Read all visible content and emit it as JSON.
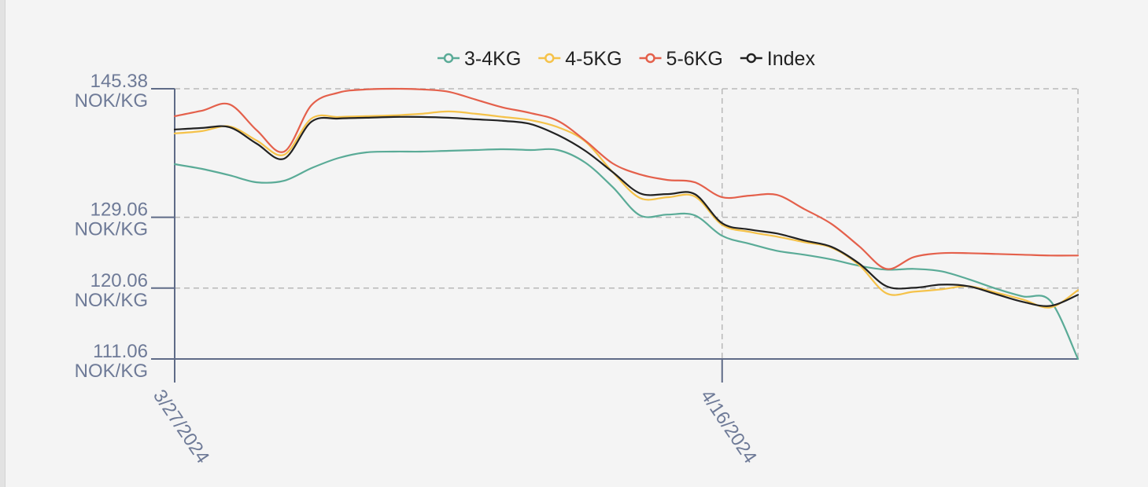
{
  "chart_data": {
    "type": "line",
    "title": "",
    "xlabel": "",
    "ylabel": "",
    "legend_position": "top",
    "grid": true,
    "y_unit": "NOK/KG",
    "ylim": [
      111.06,
      145.38
    ],
    "y_ticks": [
      {
        "value": 145.38,
        "label": "145.38",
        "unit": "NOK/KG"
      },
      {
        "value": 129.06,
        "label": "129.06",
        "unit": "NOK/KG"
      },
      {
        "value": 120.06,
        "label": "120.06",
        "unit": "NOK/KG"
      },
      {
        "value": 111.06,
        "label": "111.06",
        "unit": "NOK/KG"
      }
    ],
    "x_ticks": [
      "3/27/2024",
      "4/16/2024"
    ],
    "x": [
      "3/27/2024",
      "3/28/2024",
      "3/29/2024",
      "3/30/2024",
      "3/31/2024",
      "4/1/2024",
      "4/2/2024",
      "4/3/2024",
      "4/4/2024",
      "4/5/2024",
      "4/6/2024",
      "4/7/2024",
      "4/8/2024",
      "4/9/2024",
      "4/10/2024",
      "4/11/2024",
      "4/12/2024",
      "4/13/2024",
      "4/14/2024",
      "4/15/2024",
      "4/16/2024",
      "4/17/2024",
      "4/18/2024",
      "4/19/2024",
      "4/20/2024",
      "4/21/2024",
      "4/22/2024",
      "4/23/2024",
      "4/24/2024",
      "4/25/2024",
      "4/26/2024",
      "4/27/2024",
      "4/28/2024",
      "4/29/2024"
    ],
    "series": [
      {
        "name": "3-4KG",
        "color": "#5aab97",
        "values": [
          135.8,
          135.2,
          134.4,
          133.5,
          133.7,
          135.3,
          136.6,
          137.3,
          137.4,
          137.4,
          137.5,
          137.6,
          137.7,
          137.6,
          137.6,
          136.0,
          132.9,
          129.3,
          129.4,
          129.3,
          126.7,
          125.7,
          124.8,
          124.3,
          123.7,
          122.9,
          122.4,
          122.5,
          122.2,
          121.2,
          120.0,
          119.0,
          118.4,
          111.06
        ]
      },
      {
        "name": "4-5KG",
        "color": "#f5c249",
        "values": [
          139.7,
          140.0,
          140.6,
          138.8,
          137.0,
          141.6,
          141.8,
          141.9,
          142.0,
          142.2,
          142.5,
          142.2,
          141.8,
          141.4,
          140.5,
          138.7,
          134.8,
          131.5,
          131.6,
          131.7,
          128.1,
          127.2,
          126.6,
          125.9,
          125.2,
          123.0,
          119.4,
          119.6,
          119.9,
          120.3,
          119.5,
          118.6,
          117.6,
          119.8
        ]
      },
      {
        "name": "5-6KG",
        "color": "#e4604b",
        "values": [
          141.9,
          142.6,
          143.4,
          140.1,
          137.4,
          143.3,
          144.9,
          145.3,
          145.38,
          145.3,
          145.0,
          144.0,
          143.0,
          142.3,
          141.3,
          138.8,
          135.9,
          134.5,
          133.8,
          133.5,
          131.6,
          131.8,
          131.9,
          130.1,
          128.2,
          125.4,
          122.5,
          124.0,
          124.5,
          124.5,
          124.4,
          124.3,
          124.2,
          124.2
        ]
      },
      {
        "name": "Index",
        "color": "#222222",
        "values": [
          140.2,
          140.4,
          140.5,
          138.4,
          136.5,
          141.2,
          141.6,
          141.7,
          141.8,
          141.8,
          141.7,
          141.5,
          141.3,
          140.9,
          139.5,
          137.5,
          134.8,
          132.1,
          132.0,
          132.0,
          128.3,
          127.5,
          127.0,
          126.1,
          125.3,
          123.2,
          120.3,
          120.1,
          120.5,
          120.3,
          119.3,
          118.3,
          117.8,
          119.2
        ]
      }
    ]
  }
}
